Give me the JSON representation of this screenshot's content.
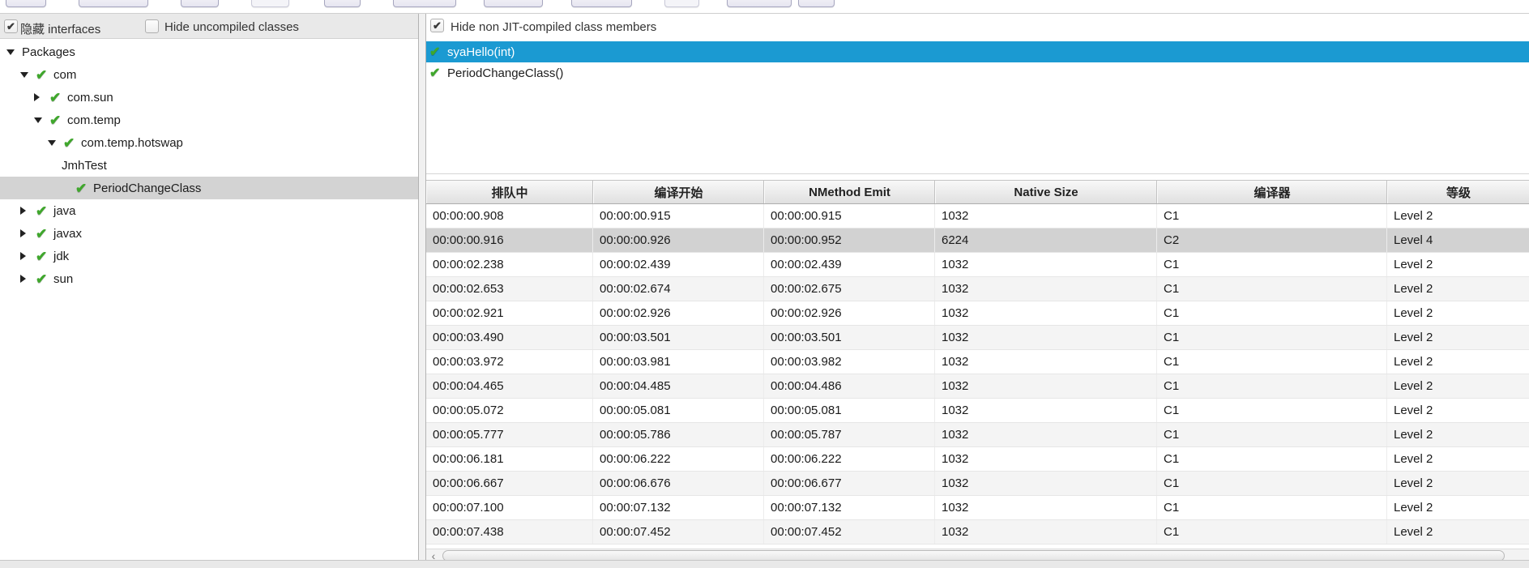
{
  "colors": {
    "selection_blue": "#1b9ad2",
    "selection_gray": "#d3d3d3",
    "jit_check_green": "#3fa72c",
    "stripe_gray": "#f4f4f4"
  },
  "left_panel": {
    "hide_interfaces_label": "隐藏 interfaces",
    "hide_interfaces_checked": true,
    "hide_uncompiled_label": "Hide uncompiled classes",
    "hide_uncompiled_checked": false,
    "tree": [
      {
        "label": "Packages",
        "depth": 0,
        "arrow": "down",
        "check": false,
        "selected": false
      },
      {
        "label": "com",
        "depth": 1,
        "arrow": "down",
        "check": true,
        "selected": false
      },
      {
        "label": "com.sun",
        "depth": 2,
        "arrow": "right",
        "check": true,
        "selected": false
      },
      {
        "label": "com.temp",
        "depth": 2,
        "arrow": "down",
        "check": true,
        "selected": false
      },
      {
        "label": "com.temp.hotswap",
        "depth": 3,
        "arrow": "down",
        "check": true,
        "selected": false
      },
      {
        "label": "JmhTest",
        "depth": 4,
        "arrow": "none",
        "check": false,
        "selected": false
      },
      {
        "label": "PeriodChangeClass",
        "depth": 5,
        "arrow": "none",
        "check": true,
        "selected": true
      },
      {
        "label": "java",
        "depth": 1,
        "arrow": "right",
        "check": true,
        "selected": false
      },
      {
        "label": "javax",
        "depth": 1,
        "arrow": "right",
        "check": true,
        "selected": false
      },
      {
        "label": "jdk",
        "depth": 1,
        "arrow": "right",
        "check": true,
        "selected": false
      },
      {
        "label": "sun",
        "depth": 1,
        "arrow": "right",
        "check": true,
        "selected": false
      }
    ]
  },
  "right_panel": {
    "hide_non_jit_label": "Hide non JIT-compiled class members",
    "hide_non_jit_checked": true,
    "members": [
      {
        "label": "syaHello(int)",
        "check": true,
        "selected": true
      },
      {
        "label": "PeriodChangeClass()",
        "check": true,
        "selected": false
      }
    ],
    "table": {
      "columns": [
        "排队中",
        "编译开始",
        "NMethod Emit",
        "Native Size",
        "编译器",
        "等级"
      ],
      "selected_row_index": 1,
      "rows": [
        [
          "00:00:00.908",
          "00:00:00.915",
          "00:00:00.915",
          "1032",
          "C1",
          "Level 2"
        ],
        [
          "00:00:00.916",
          "00:00:00.926",
          "00:00:00.952",
          "6224",
          "C2",
          "Level 4"
        ],
        [
          "00:00:02.238",
          "00:00:02.439",
          "00:00:02.439",
          "1032",
          "C1",
          "Level 2"
        ],
        [
          "00:00:02.653",
          "00:00:02.674",
          "00:00:02.675",
          "1032",
          "C1",
          "Level 2"
        ],
        [
          "00:00:02.921",
          "00:00:02.926",
          "00:00:02.926",
          "1032",
          "C1",
          "Level 2"
        ],
        [
          "00:00:03.490",
          "00:00:03.501",
          "00:00:03.501",
          "1032",
          "C1",
          "Level 2"
        ],
        [
          "00:00:03.972",
          "00:00:03.981",
          "00:00:03.982",
          "1032",
          "C1",
          "Level 2"
        ],
        [
          "00:00:04.465",
          "00:00:04.485",
          "00:00:04.486",
          "1032",
          "C1",
          "Level 2"
        ],
        [
          "00:00:05.072",
          "00:00:05.081",
          "00:00:05.081",
          "1032",
          "C1",
          "Level 2"
        ],
        [
          "00:00:05.777",
          "00:00:05.786",
          "00:00:05.787",
          "1032",
          "C1",
          "Level 2"
        ],
        [
          "00:00:06.181",
          "00:00:06.222",
          "00:00:06.222",
          "1032",
          "C1",
          "Level 2"
        ],
        [
          "00:00:06.667",
          "00:00:06.676",
          "00:00:06.677",
          "1032",
          "C1",
          "Level 2"
        ],
        [
          "00:00:07.100",
          "00:00:07.132",
          "00:00:07.132",
          "1032",
          "C1",
          "Level 2"
        ],
        [
          "00:00:07.438",
          "00:00:07.452",
          "00:00:07.452",
          "1032",
          "C1",
          "Level 2"
        ]
      ]
    }
  },
  "icons": {
    "checkbox_tick": "✔",
    "jit_tick": "✔",
    "scroll_left_arrow": "‹"
  }
}
